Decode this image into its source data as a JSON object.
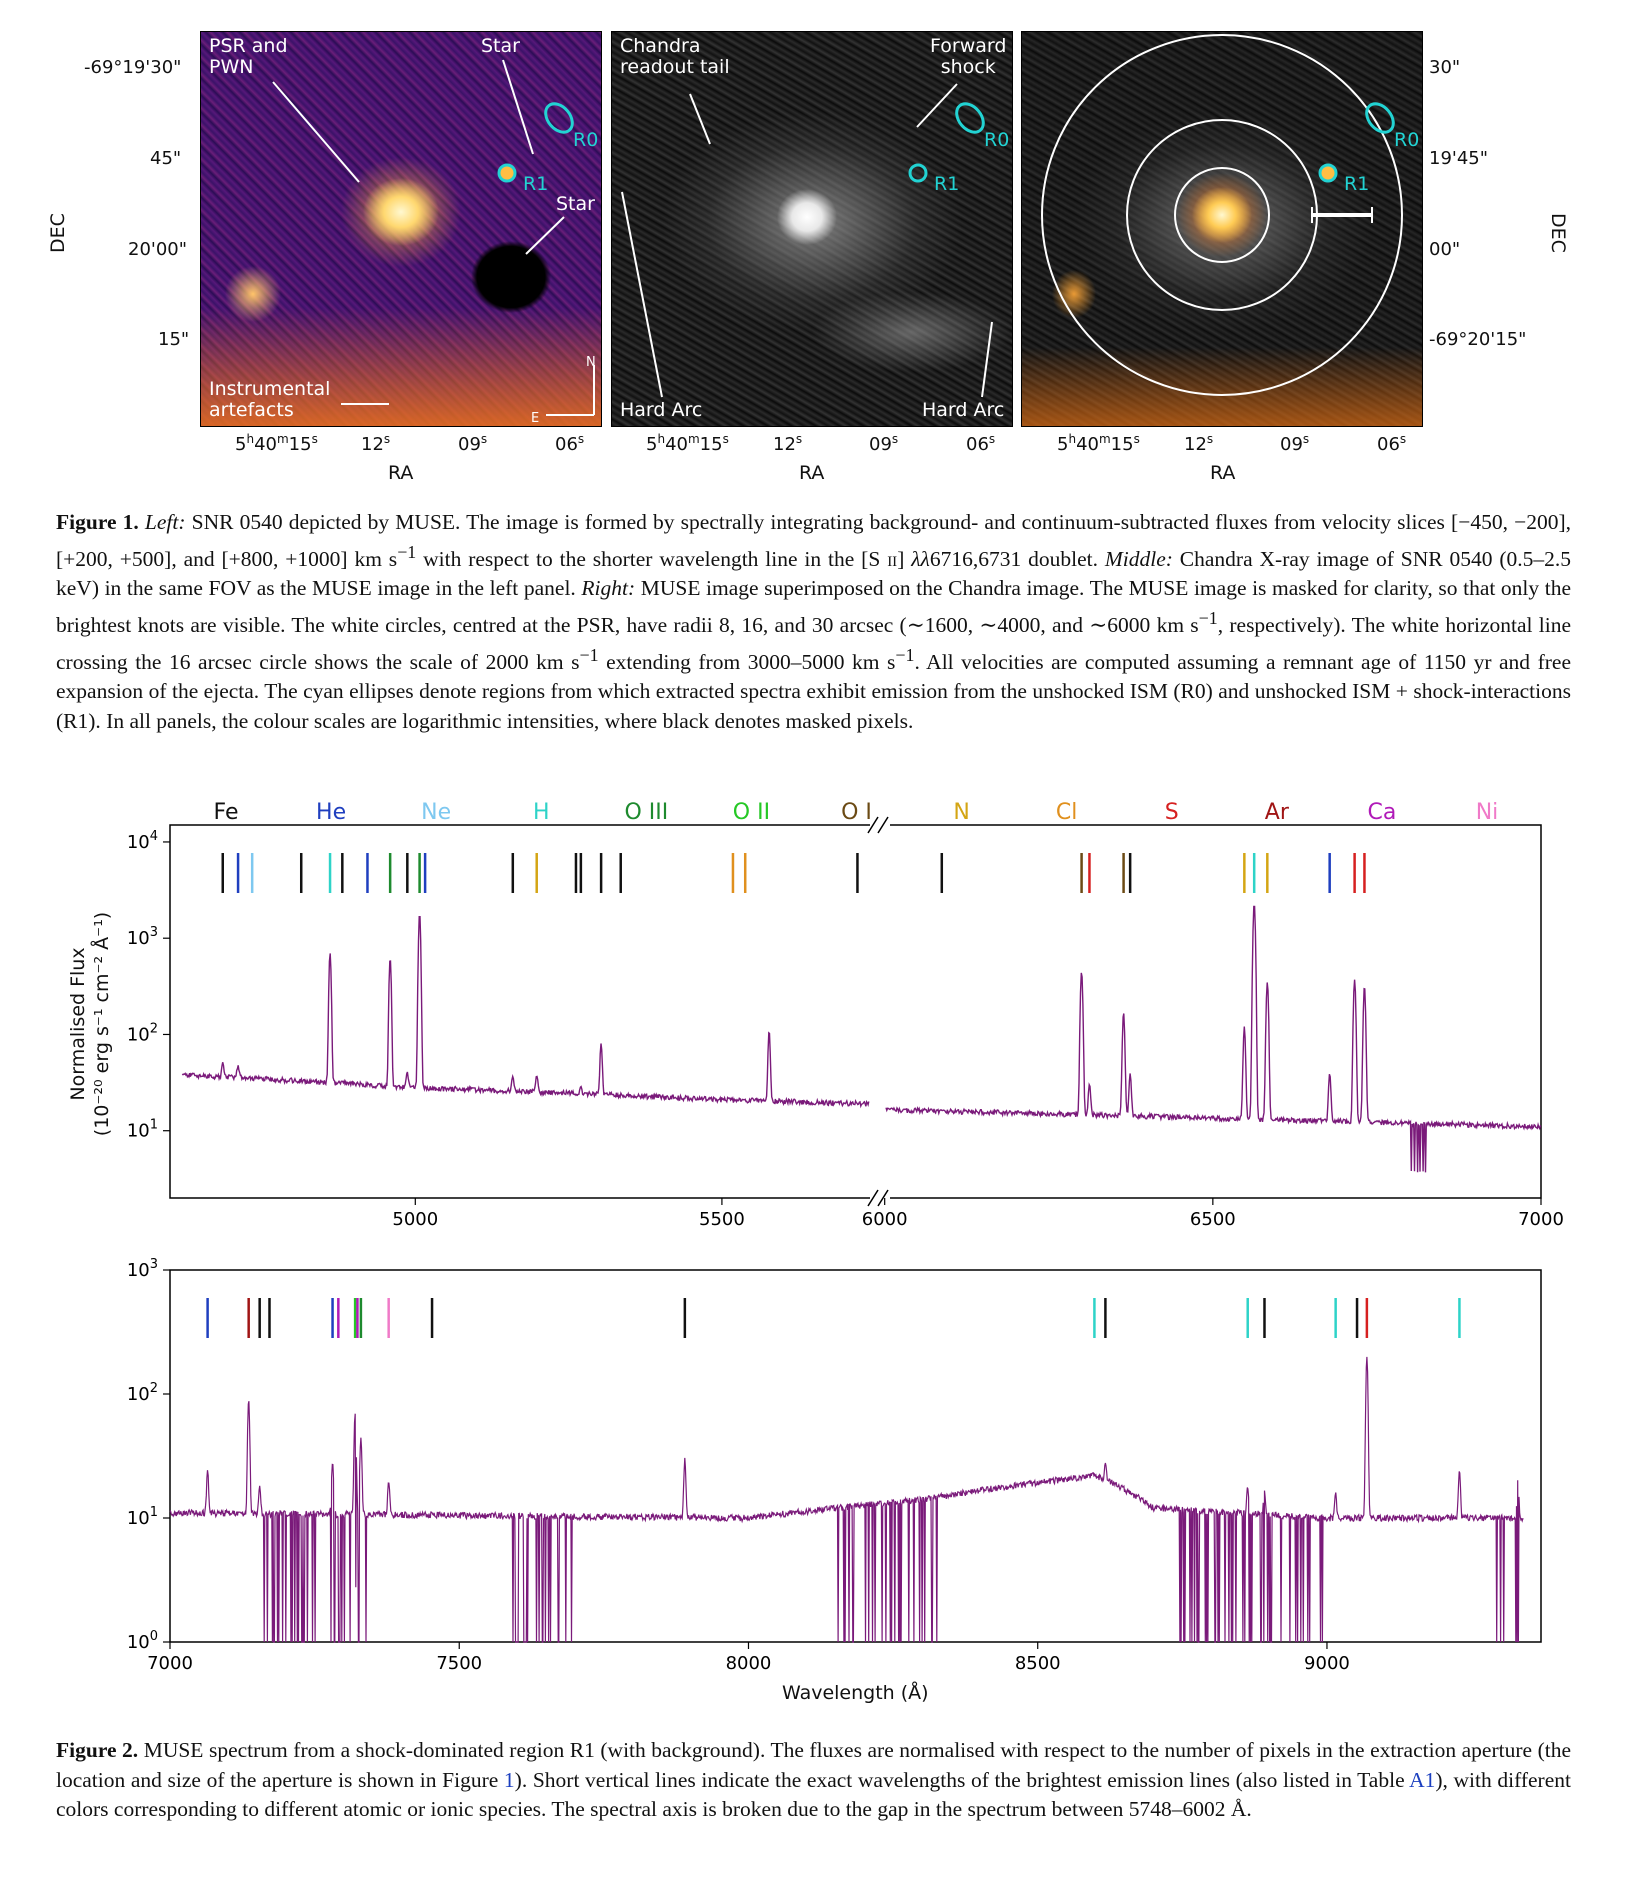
{
  "figure1": {
    "dec_ticks_left": [
      "-69°19'30\"",
      "45\"",
      "20'00\"",
      "15\""
    ],
    "dec_ticks_right": [
      "30\"",
      "19'45\"",
      "00\"",
      "-69°20'15\""
    ],
    "dec_label": "DEC",
    "ra_label": "RA",
    "ra_ticks": [
      "5h40m15s",
      "12s",
      "09s",
      "06s"
    ],
    "panel_left": {
      "psr_label_line1": "PSR and",
      "psr_label_line2": "PWN",
      "star_top": "Star",
      "star_mid": "Star",
      "r0": "R0",
      "r1": "R1",
      "instr_line1": "Instrumental",
      "instr_line2": "artefacts",
      "compass_n": "N",
      "compass_e": "E"
    },
    "panel_middle": {
      "chandra_line1": "Chandra",
      "chandra_line2": "readout tail",
      "forward_line1": "Forward",
      "forward_line2": "shock",
      "r0": "R0",
      "r1": "R1",
      "hard_arc_left": "Hard Arc",
      "hard_arc_right": "Hard Arc"
    },
    "panel_right": {
      "r0": "R0",
      "r1": "R1"
    },
    "caption": {
      "label": "Figure 1.",
      "left_head": "Left:",
      "left_text": " SNR 0540 depicted by MUSE. The image is formed by spectrally integrating background- and continuum-subtracted fluxes from velocity slices [−450, −200], [+200, +500], and [+800, +1000] km s",
      "left_text_b": " with respect to the shorter wavelength line in the [S ",
      "left_text_c": "] ",
      "left_text_d": "6716,6731 doublet. ",
      "mid_head": "Middle:",
      "mid_text": " Chandra X-ray image of SNR 0540 (0.5–2.5 keV) in the same FOV as the MUSE image in the left panel. ",
      "right_head": "Right:",
      "right_text": " MUSE image superimposed on the Chandra image. The MUSE image is masked for clarity, so that only the brightest knots are visible. The white circles, centred at the PSR, have radii 8, 16, and 30 arcsec (∼1600, ∼4000, and ∼6000 km s",
      "right_text_b": ", respectively). The white horizontal line crossing the 16 arcsec circle shows the scale of 2000 km s",
      "right_text_c": " extending from 3000–5000 km s",
      "right_text_d": ". All velocities are computed assuming a remnant age of 1150 yr and free expansion of the ejecta. The cyan ellipses denote regions from which extracted spectra exhibit emission from the unshocked ISM (R0) and unshocked ISM + shock-interactions (R1). In all panels, the colour scales are logarithmic intensities, where black denotes masked pixels.",
      "sup_m1": "−1",
      "roman_ii": "ii",
      "lambda": "λλ"
    }
  },
  "figure2": {
    "species": [
      {
        "name": "Fe",
        "color": "#111111"
      },
      {
        "name": "He",
        "color": "#1f3fbf"
      },
      {
        "name": "Ne",
        "color": "#7ec8f0"
      },
      {
        "name": "H",
        "color": "#2ed3c8"
      },
      {
        "name": "O III",
        "color": "#1e8a2e"
      },
      {
        "name": "O II",
        "color": "#25c825"
      },
      {
        "name": "O I",
        "color": "#6b4a14"
      },
      {
        "name": "N",
        "color": "#d4a514"
      },
      {
        "name": "Cl",
        "color": "#e0901e"
      },
      {
        "name": "S",
        "color": "#d62020"
      },
      {
        "name": "Ar",
        "color": "#a01414"
      },
      {
        "name": "Ca",
        "color": "#b01ab8"
      },
      {
        "name": "Ni",
        "color": "#f07ac8"
      }
    ],
    "ylabel_line1": "Normalised Flux",
    "ylabel_line2": "(10⁻²⁰ erg s⁻¹ cm⁻² Å⁻¹)",
    "xlabel": "Wavelength (Å)",
    "caption": {
      "label": "Figure 2.",
      "text_a": " MUSE spectrum from a shock-dominated region R1 (with background). The fluxes are normalised with respect to the number of pixels in the extraction aperture (the location and size of the aperture is shown in Figure ",
      "fig_ref": "1",
      "text_b": "). Short vertical lines indicate the exact wavelengths of the brightest emission lines (also listed in Table ",
      "table_ref": "A1",
      "text_c": "), with different colors corresponding to different atomic or ionic species. The spectral axis is broken due to the gap in the spectrum between 5748–6002 Å."
    }
  },
  "chart_data": [
    {
      "type": "line",
      "title": "",
      "xlabel": "",
      "ylabel": "Normalised Flux (10⁻²⁰ erg s⁻¹ cm⁻² Å⁻¹)",
      "yscale": "log",
      "ylim": [
        2,
        15000
      ],
      "xlim_segments": [
        [
          4600,
          5748
        ],
        [
          6002,
          7000
        ]
      ],
      "xticks": [
        5000,
        5500,
        6000,
        6500,
        7000
      ],
      "yticks": [
        "10^1",
        "10^2",
        "10^3",
        "10^4"
      ],
      "continuum": {
        "x": [
          4620,
          5000,
          5500,
          5740,
          6002,
          6500,
          7000
        ],
        "y": [
          38,
          28,
          21,
          19,
          16.5,
          13.5,
          11
        ]
      },
      "peaks": [
        {
          "x": 4686,
          "y": 50
        },
        {
          "x": 4711,
          "y": 48
        },
        {
          "x": 4861,
          "y": 700
        },
        {
          "x": 4959,
          "y": 620
        },
        {
          "x": 4987,
          "y": 40
        },
        {
          "x": 5007,
          "y": 1800
        },
        {
          "x": 5159,
          "y": 36
        },
        {
          "x": 5198,
          "y": 38
        },
        {
          "x": 5270,
          "y": 30
        },
        {
          "x": 5303,
          "y": 80
        },
        {
          "x": 5577,
          "y": 110
        },
        {
          "x": 6300,
          "y": 450
        },
        {
          "x": 6312,
          "y": 30
        },
        {
          "x": 6364,
          "y": 170
        },
        {
          "x": 6374,
          "y": 40
        },
        {
          "x": 6548,
          "y": 120
        },
        {
          "x": 6563,
          "y": 2300
        },
        {
          "x": 6583,
          "y": 350
        },
        {
          "x": 6678,
          "y": 40
        },
        {
          "x": 6716,
          "y": 370
        },
        {
          "x": 6731,
          "y": 320
        }
      ],
      "line_markers": [
        {
          "x": 4686,
          "species": "Fe"
        },
        {
          "x": 4711,
          "species": "He"
        },
        {
          "x": 4734,
          "species": "Ne"
        },
        {
          "x": 4814,
          "species": "Fe"
        },
        {
          "x": 4861,
          "species": "H"
        },
        {
          "x": 4881,
          "species": "Fe"
        },
        {
          "x": 4922,
          "species": "He"
        },
        {
          "x": 4959,
          "species": "O III"
        },
        {
          "x": 4987,
          "species": "Fe"
        },
        {
          "x": 5007,
          "species": "O III"
        },
        {
          "x": 5016,
          "species": "He"
        },
        {
          "x": 5159,
          "species": "Fe"
        },
        {
          "x": 5198,
          "species": "N"
        },
        {
          "x": 5262,
          "species": "Fe"
        },
        {
          "x": 5270,
          "species": "Fe"
        },
        {
          "x": 5303,
          "species": "Fe"
        },
        {
          "x": 5335,
          "species": "Fe"
        },
        {
          "x": 5518,
          "species": "Cl"
        },
        {
          "x": 5538,
          "species": "Cl"
        },
        {
          "x": 5721,
          "species": "Fe"
        },
        {
          "x": 6087,
          "species": "Fe"
        },
        {
          "x": 6300,
          "species": "O I"
        },
        {
          "x": 6312,
          "species": "S"
        },
        {
          "x": 6364,
          "species": "O I"
        },
        {
          "x": 6374,
          "species": "Fe"
        },
        {
          "x": 6548,
          "species": "N"
        },
        {
          "x": 6563,
          "species": "H"
        },
        {
          "x": 6583,
          "species": "N"
        },
        {
          "x": 6678,
          "species": "He"
        },
        {
          "x": 6716,
          "species": "S"
        },
        {
          "x": 6731,
          "species": "S"
        }
      ]
    },
    {
      "type": "line",
      "title": "",
      "xlabel": "Wavelength (Å)",
      "ylabel": "",
      "yscale": "log",
      "ylim": [
        1,
        1000
      ],
      "xlim": [
        7000,
        9370
      ],
      "xticks": [
        7000,
        7500,
        8000,
        8500,
        9000
      ],
      "yticks": [
        "10^0",
        "10^1",
        "10^2",
        "10^3"
      ],
      "continuum": {
        "x": [
          7000,
          7500,
          8000,
          8300,
          8600,
          8700,
          9000,
          9370
        ],
        "y": [
          11,
          10.5,
          10,
          14,
          22,
          12,
          10,
          10
        ]
      },
      "peaks": [
        {
          "x": 7065,
          "y": 24
        },
        {
          "x": 7136,
          "y": 90
        },
        {
          "x": 7155,
          "y": 18
        },
        {
          "x": 7281,
          "y": 28
        },
        {
          "x": 7320,
          "y": 70
        },
        {
          "x": 7330,
          "y": 45
        },
        {
          "x": 7378,
          "y": 20
        },
        {
          "x": 7890,
          "y": 30
        },
        {
          "x": 8617,
          "y": 28
        },
        {
          "x": 8863,
          "y": 18
        },
        {
          "x": 8892,
          "y": 16
        },
        {
          "x": 9015,
          "y": 16
        },
        {
          "x": 9069,
          "y": 200
        },
        {
          "x": 9229,
          "y": 24
        },
        {
          "x": 9330,
          "y": 20
        }
      ],
      "line_markers": [
        {
          "x": 7065,
          "species": "He"
        },
        {
          "x": 7136,
          "species": "Ar"
        },
        {
          "x": 7155,
          "species": "Fe"
        },
        {
          "x": 7172,
          "species": "Fe"
        },
        {
          "x": 7281,
          "species": "He"
        },
        {
          "x": 7291,
          "species": "Ca"
        },
        {
          "x": 7320,
          "species": "O II"
        },
        {
          "x": 7324,
          "species": "Ca"
        },
        {
          "x": 7330,
          "species": "O III"
        },
        {
          "x": 7378,
          "species": "Ni"
        },
        {
          "x": 7453,
          "species": "Fe"
        },
        {
          "x": 7890,
          "species": "Fe"
        },
        {
          "x": 8598,
          "species": "H"
        },
        {
          "x": 8617,
          "species": "Fe"
        },
        {
          "x": 8863,
          "species": "H"
        },
        {
          "x": 8892,
          "species": "Fe"
        },
        {
          "x": 9015,
          "species": "H"
        },
        {
          "x": 9052,
          "species": "Fe"
        },
        {
          "x": 9069,
          "species": "S"
        },
        {
          "x": 9229,
          "species": "H"
        }
      ]
    }
  ]
}
